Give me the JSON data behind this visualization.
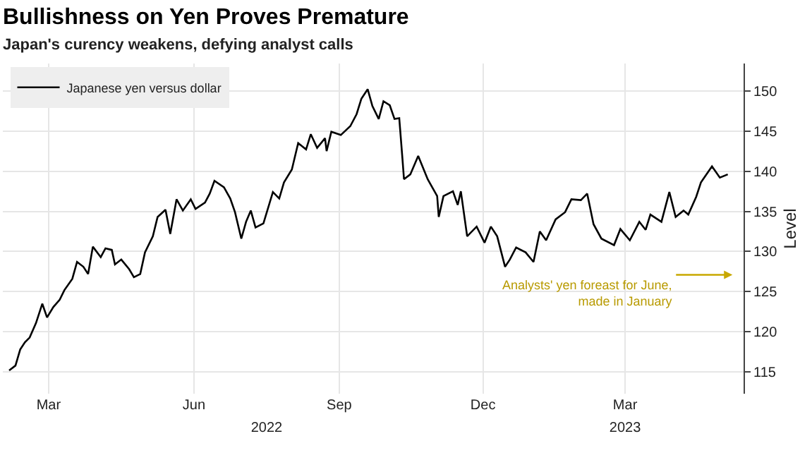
{
  "chart_data": {
    "type": "line",
    "title": "Bullishness on Yen Proves Premature",
    "subtitle": "Japan's curency weakens, defying analyst calls",
    "ylabel": "Level",
    "x": [
      "2022-02-04",
      "2022-02-08",
      "2022-02-11",
      "2022-02-14",
      "2022-02-17",
      "2022-02-21",
      "2022-02-25",
      "2022-02-28",
      "2022-03-04",
      "2022-03-08",
      "2022-03-11",
      "2022-03-16",
      "2022-03-19",
      "2022-03-23",
      "2022-03-26",
      "2022-03-29",
      "2022-04-03",
      "2022-04-06",
      "2022-04-10",
      "2022-04-12",
      "2022-04-16",
      "2022-04-21",
      "2022-04-24",
      "2022-04-28",
      "2022-05-01",
      "2022-05-06",
      "2022-05-09",
      "2022-05-14",
      "2022-05-17",
      "2022-05-21",
      "2022-05-25",
      "2022-05-30",
      "2022-06-02",
      "2022-06-08",
      "2022-06-11",
      "2022-06-14",
      "2022-06-20",
      "2022-06-24",
      "2022-06-27",
      "2022-07-01",
      "2022-07-04",
      "2022-07-07",
      "2022-07-10",
      "2022-07-15",
      "2022-07-21",
      "2022-07-25",
      "2022-07-28",
      "2022-08-02",
      "2022-08-06",
      "2022-08-11",
      "2022-08-14",
      "2022-08-18",
      "2022-08-23",
      "2022-08-24",
      "2022-08-27",
      "2022-09-02",
      "2022-09-08",
      "2022-09-12",
      "2022-09-15",
      "2022-09-19",
      "2022-09-22",
      "2022-09-26",
      "2022-09-29",
      "2022-10-03",
      "2022-10-06",
      "2022-10-09",
      "2022-10-11",
      "2022-10-12",
      "2022-10-16",
      "2022-10-21",
      "2022-10-27",
      "2022-11-02",
      "2022-11-03",
      "2022-11-06",
      "2022-11-12",
      "2022-11-15",
      "2022-11-17",
      "2022-11-21",
      "2022-11-27",
      "2022-12-02",
      "2022-12-06",
      "2022-12-10",
      "2022-12-15",
      "2022-12-18",
      "2022-12-22",
      "2022-12-28",
      "2023-01-02",
      "2023-01-06",
      "2023-01-10",
      "2023-01-16",
      "2023-01-22",
      "2023-01-26",
      "2023-02-01",
      "2023-02-05",
      "2023-02-09",
      "2023-02-14",
      "2023-02-22",
      "2023-02-26",
      "2023-03-04",
      "2023-03-10",
      "2023-03-14",
      "2023-03-17",
      "2023-03-24",
      "2023-03-29",
      "2023-04-02",
      "2023-04-07",
      "2023-04-10",
      "2023-04-15",
      "2023-04-18",
      "2023-04-25",
      "2023-04-30",
      "2023-05-05"
    ],
    "series": [
      {
        "name": "Japanese yen versus dollar",
        "color": "#000000",
        "values": [
          115.2,
          115.8,
          117.8,
          118.7,
          119.3,
          121.1,
          123.5,
          121.8,
          123.1,
          124.0,
          125.2,
          126.6,
          128.7,
          128.1,
          127.2,
          130.6,
          129.3,
          130.4,
          130.2,
          128.4,
          129.0,
          127.8,
          126.8,
          127.2,
          129.9,
          131.9,
          134.3,
          135.2,
          132.2,
          136.5,
          135.1,
          136.5,
          135.3,
          136.1,
          137.2,
          138.8,
          138.0,
          136.6,
          134.9,
          131.6,
          133.7,
          135.1,
          133.0,
          133.5,
          137.4,
          136.6,
          138.6,
          140.2,
          143.5,
          142.7,
          144.6,
          142.9,
          144.1,
          142.5,
          144.9,
          144.5,
          145.6,
          147.1,
          149.0,
          150.2,
          148.1,
          146.5,
          148.7,
          148.2,
          146.5,
          146.6,
          141.6,
          139.0,
          139.6,
          141.9,
          139.0,
          136.9,
          134.3,
          136.9,
          137.5,
          135.8,
          137.5,
          131.9,
          133.1,
          131.1,
          133.1,
          131.9,
          128.1,
          129.0,
          130.5,
          129.9,
          128.7,
          132.5,
          131.4,
          134.0,
          134.9,
          136.5,
          136.4,
          137.2,
          133.4,
          131.6,
          130.8,
          132.8,
          131.4,
          133.7,
          132.7,
          134.6,
          133.7,
          137.4,
          134.3,
          135.1,
          134.6,
          136.8,
          138.6,
          140.6,
          139.2,
          139.6
        ]
      }
    ],
    "xlim": [
      "2022-01-31",
      "2023-05-15"
    ],
    "xticks": [
      {
        "value": "2022-03-01",
        "label": "Mar"
      },
      {
        "value": "2022-06-01",
        "label": "Jun"
      },
      {
        "value": "2022-09-01",
        "label": "Sep"
      },
      {
        "value": "2022-12-01",
        "label": "Dec"
      },
      {
        "value": "2023-03-01",
        "label": "Mar"
      }
    ],
    "x2lim": [
      "2022-01-31",
      "2023-05-15"
    ],
    "x2ticks": [
      {
        "value": "2022-07-17",
        "label": "2022"
      },
      {
        "value": "2023-03-01",
        "label": "2023"
      }
    ],
    "ylim": [
      112.3,
      153.4
    ],
    "yticks": [
      115,
      120,
      125,
      130,
      135,
      140,
      145,
      150
    ],
    "annotations": [
      "Analysts' yen foreast for June,\nmade in January"
    ],
    "grid": true,
    "legend": "top left",
    "marker": "none",
    "line_style": "solid"
  }
}
